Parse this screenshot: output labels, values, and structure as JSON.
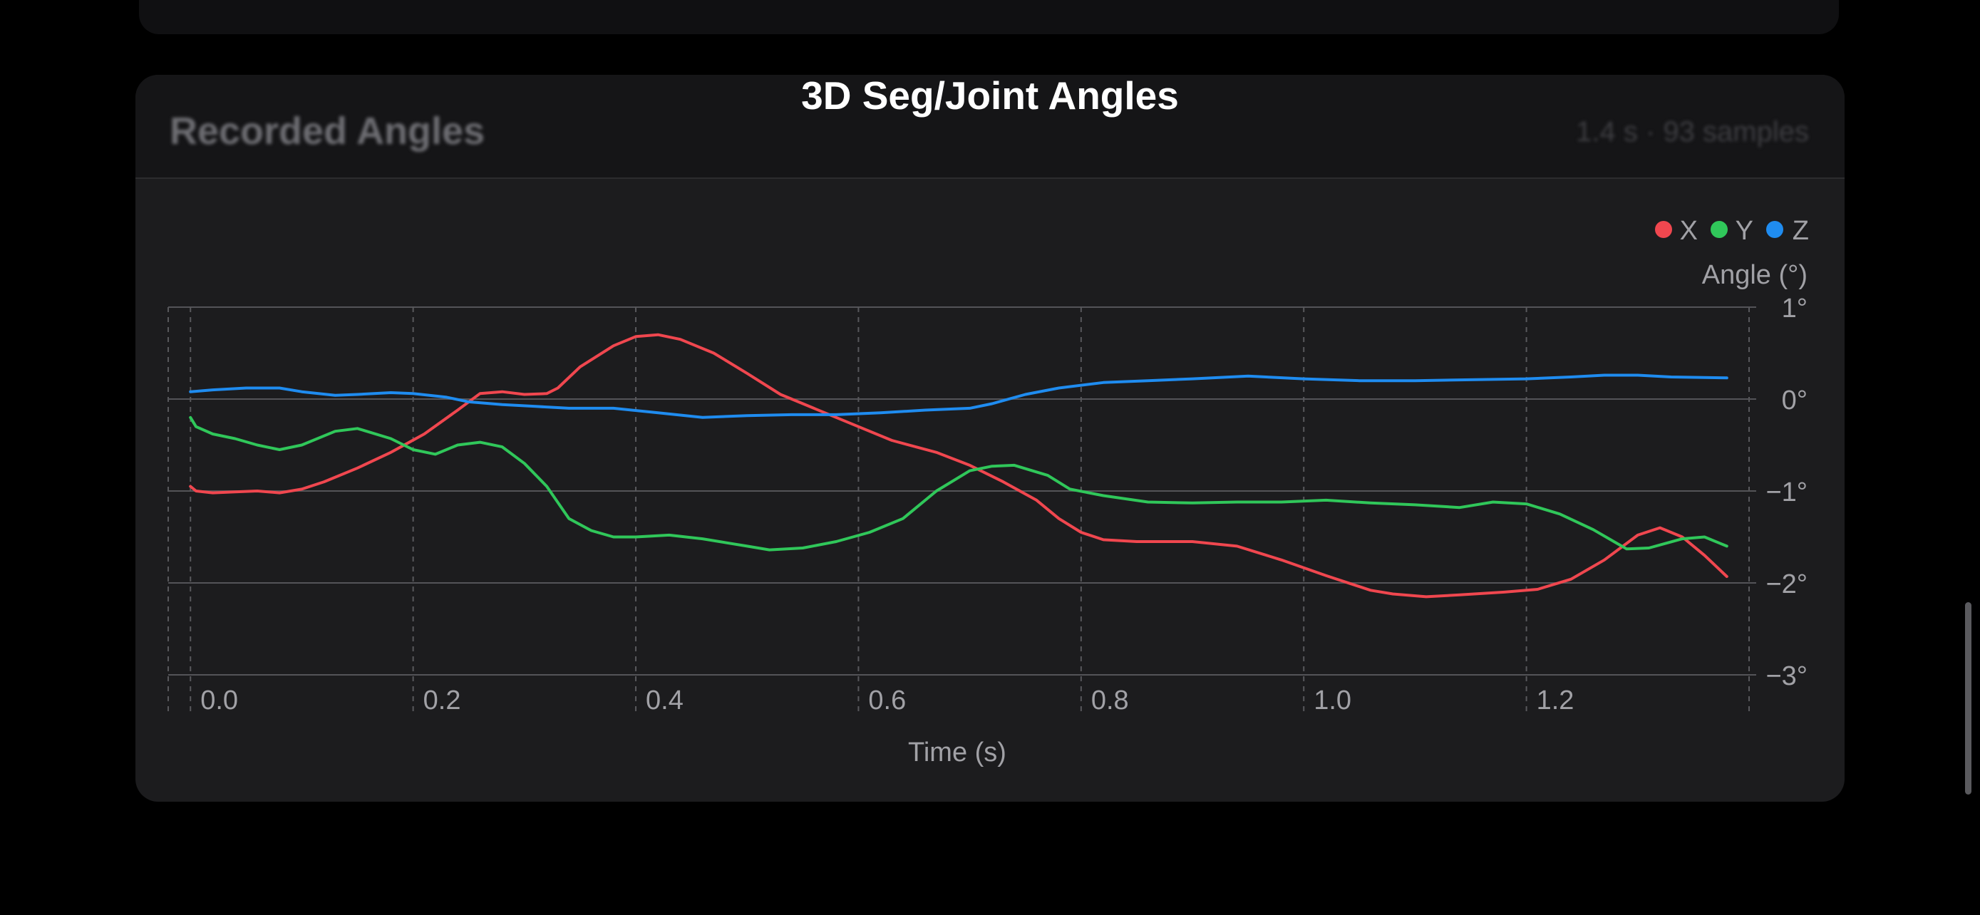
{
  "header": {
    "title": "3D Seg/Joint Angles"
  },
  "section": {
    "title": "Recorded Angles",
    "meta": "1.4 s · 93 samples"
  },
  "chart_data": {
    "type": "line",
    "xlabel": "Time (s)",
    "ylabel": "Angle (°)",
    "xlim": [
      -0.02,
      1.4
    ],
    "ylim": [
      -3,
      1
    ],
    "x_ticks": [
      0.0,
      0.2,
      0.4,
      0.6,
      0.8,
      1.0,
      1.2
    ],
    "x_tick_labels": [
      "0.0",
      "0.2",
      "0.4",
      "0.6",
      "0.8",
      "1.0",
      "1.2"
    ],
    "y_ticks": [
      1,
      0,
      -1,
      -2,
      -3
    ],
    "y_tick_labels": [
      "1°",
      "0°",
      "−1°",
      "−2°",
      "−3°"
    ],
    "grid": true,
    "legend_position": "top-right",
    "series": [
      {
        "name": "X",
        "color": "#f0474f",
        "x": [
          0.0,
          0.005,
          0.02,
          0.04,
          0.06,
          0.08,
          0.1,
          0.12,
          0.15,
          0.18,
          0.21,
          0.24,
          0.26,
          0.28,
          0.3,
          0.32,
          0.33,
          0.35,
          0.38,
          0.4,
          0.42,
          0.44,
          0.47,
          0.5,
          0.53,
          0.56,
          0.6,
          0.63,
          0.67,
          0.7,
          0.73,
          0.76,
          0.78,
          0.8,
          0.82,
          0.85,
          0.9,
          0.94,
          0.98,
          1.02,
          1.06,
          1.08,
          1.11,
          1.14,
          1.18,
          1.21,
          1.24,
          1.27,
          1.3,
          1.32,
          1.34,
          1.36,
          1.38
        ],
        "y": [
          -0.95,
          -1.0,
          -1.02,
          -1.01,
          -1.0,
          -1.02,
          -0.98,
          -0.9,
          -0.75,
          -0.58,
          -0.38,
          -0.12,
          0.06,
          0.08,
          0.05,
          0.06,
          0.12,
          0.35,
          0.58,
          0.68,
          0.7,
          0.65,
          0.5,
          0.28,
          0.05,
          -0.1,
          -0.3,
          -0.45,
          -0.58,
          -0.72,
          -0.9,
          -1.1,
          -1.3,
          -1.45,
          -1.53,
          -1.55,
          -1.55,
          -1.6,
          -1.75,
          -1.92,
          -2.08,
          -2.12,
          -2.15,
          -2.13,
          -2.1,
          -2.07,
          -1.96,
          -1.75,
          -1.48,
          -1.4,
          -1.5,
          -1.7,
          -1.93
        ]
      },
      {
        "name": "Y",
        "color": "#30c75a",
        "x": [
          0.0,
          0.005,
          0.02,
          0.04,
          0.06,
          0.08,
          0.1,
          0.13,
          0.15,
          0.18,
          0.2,
          0.22,
          0.24,
          0.26,
          0.28,
          0.3,
          0.32,
          0.34,
          0.36,
          0.38,
          0.4,
          0.43,
          0.46,
          0.5,
          0.52,
          0.55,
          0.58,
          0.61,
          0.64,
          0.67,
          0.7,
          0.72,
          0.74,
          0.77,
          0.79,
          0.82,
          0.86,
          0.9,
          0.94,
          0.98,
          1.02,
          1.06,
          1.1,
          1.14,
          1.17,
          1.2,
          1.23,
          1.26,
          1.29,
          1.31,
          1.34,
          1.36,
          1.38
        ],
        "y": [
          -0.2,
          -0.3,
          -0.38,
          -0.43,
          -0.5,
          -0.55,
          -0.5,
          -0.35,
          -0.32,
          -0.43,
          -0.55,
          -0.6,
          -0.5,
          -0.47,
          -0.52,
          -0.7,
          -0.95,
          -1.3,
          -1.43,
          -1.5,
          -1.5,
          -1.48,
          -1.52,
          -1.6,
          -1.64,
          -1.62,
          -1.55,
          -1.45,
          -1.3,
          -1.0,
          -0.78,
          -0.73,
          -0.72,
          -0.83,
          -0.98,
          -1.05,
          -1.12,
          -1.13,
          -1.12,
          -1.12,
          -1.1,
          -1.13,
          -1.15,
          -1.18,
          -1.12,
          -1.14,
          -1.25,
          -1.42,
          -1.63,
          -1.62,
          -1.52,
          -1.5,
          -1.6
        ]
      },
      {
        "name": "Z",
        "color": "#1f8cf0",
        "x": [
          0.0,
          0.02,
          0.05,
          0.08,
          0.1,
          0.13,
          0.15,
          0.18,
          0.2,
          0.23,
          0.25,
          0.28,
          0.31,
          0.34,
          0.38,
          0.42,
          0.46,
          0.5,
          0.54,
          0.58,
          0.62,
          0.66,
          0.7,
          0.72,
          0.75,
          0.78,
          0.82,
          0.86,
          0.9,
          0.95,
          1.0,
          1.05,
          1.1,
          1.15,
          1.2,
          1.24,
          1.27,
          1.3,
          1.33,
          1.38
        ],
        "y": [
          0.08,
          0.1,
          0.12,
          0.12,
          0.08,
          0.04,
          0.05,
          0.07,
          0.06,
          0.02,
          -0.03,
          -0.06,
          -0.08,
          -0.1,
          -0.1,
          -0.15,
          -0.2,
          -0.18,
          -0.17,
          -0.17,
          -0.15,
          -0.12,
          -0.1,
          -0.05,
          0.05,
          0.12,
          0.18,
          0.2,
          0.22,
          0.25,
          0.22,
          0.2,
          0.2,
          0.21,
          0.22,
          0.24,
          0.26,
          0.26,
          0.24,
          0.23
        ]
      }
    ]
  }
}
